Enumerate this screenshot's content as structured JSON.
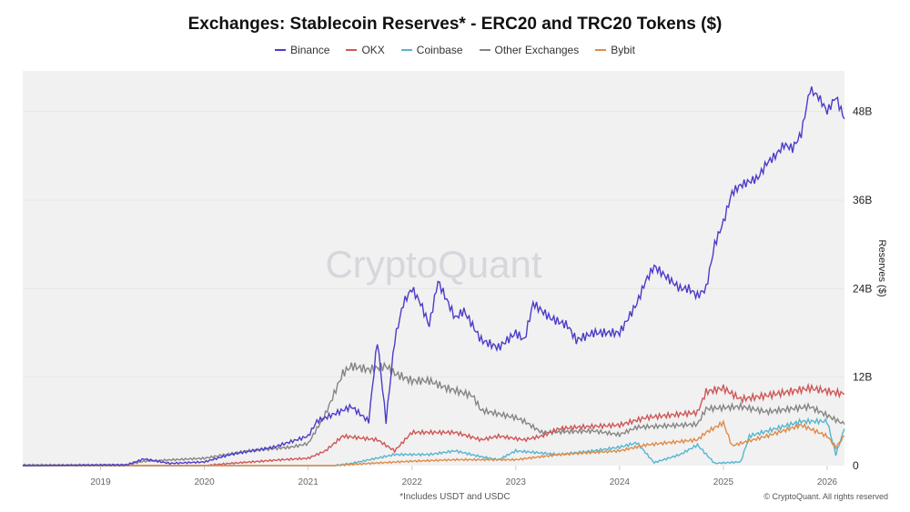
{
  "chart_data": {
    "type": "line",
    "title": "Exchanges: Stablecoin Reserves* - ERC20 and TRC20 Tokens ($)",
    "ylabel": "Reserves ($)",
    "xlabel": "",
    "x_ticks": [
      "2019",
      "2020",
      "2021",
      "2022",
      "2023",
      "2024",
      "2025",
      "2026"
    ],
    "y_ticks": [
      "0",
      "12B",
      "24B",
      "36B",
      "48B"
    ],
    "y_tick_values": [
      0,
      12,
      24,
      36,
      48
    ],
    "y_unit": "billions USD",
    "ylim": [
      0,
      53.5
    ],
    "xlim": [
      "2018-04",
      "2026-03"
    ],
    "y_axis_side": "right",
    "grid": "horizontal",
    "legend_position": "top",
    "watermark": "CryptoQuant",
    "footnote": "*Includes USDT and USDC",
    "copyright": "© CryptoQuant. All rights reserved",
    "series": [
      {
        "name": "Binance",
        "color": "#4b3cc9",
        "points": [
          [
            "2018-04",
            0
          ],
          [
            "2019-04",
            0.1
          ],
          [
            "2019-06",
            0.9
          ],
          [
            "2019-09",
            0.3
          ],
          [
            "2020-01",
            0.5
          ],
          [
            "2020-04",
            1.5
          ],
          [
            "2020-09",
            2.5
          ],
          [
            "2021-01",
            4
          ],
          [
            "2021-02",
            6
          ],
          [
            "2021-04",
            7
          ],
          [
            "2021-06",
            8
          ],
          [
            "2021-08",
            6
          ],
          [
            "2021-09",
            17
          ],
          [
            "2021-10",
            6
          ],
          [
            "2021-11",
            17
          ],
          [
            "2021-12",
            22
          ],
          [
            "2022-01",
            24
          ],
          [
            "2022-02",
            22
          ],
          [
            "2022-03",
            19
          ],
          [
            "2022-04",
            25
          ],
          [
            "2022-06",
            20
          ],
          [
            "2022-07",
            21
          ],
          [
            "2022-08",
            19
          ],
          [
            "2022-09",
            17
          ],
          [
            "2022-11",
            16
          ],
          [
            "2023-01",
            18
          ],
          [
            "2023-02",
            17
          ],
          [
            "2023-03",
            22
          ],
          [
            "2023-05",
            20
          ],
          [
            "2023-07",
            19
          ],
          [
            "2023-08",
            17
          ],
          [
            "2023-10",
            18
          ],
          [
            "2024-01",
            18
          ],
          [
            "2024-02",
            20
          ],
          [
            "2024-03",
            22
          ],
          [
            "2024-04",
            25
          ],
          [
            "2024-05",
            27
          ],
          [
            "2024-07",
            25
          ],
          [
            "2024-08",
            24
          ],
          [
            "2024-09",
            24
          ],
          [
            "2024-10",
            23
          ],
          [
            "2024-11",
            24
          ],
          [
            "2024-12",
            30
          ],
          [
            "2025-01",
            33
          ],
          [
            "2025-02",
            37
          ],
          [
            "2025-03",
            38
          ],
          [
            "2025-05",
            39
          ],
          [
            "2025-06",
            41
          ],
          [
            "2025-07",
            42
          ],
          [
            "2025-08",
            43.5
          ],
          [
            "2025-09",
            43
          ],
          [
            "2025-10",
            45
          ],
          [
            "2025-11",
            51
          ],
          [
            "2025-12",
            50
          ],
          [
            "2026-01",
            48
          ],
          [
            "2026-02",
            50
          ],
          [
            "2026-03",
            47
          ]
        ]
      },
      {
        "name": "OKX",
        "color": "#cf5757",
        "points": [
          [
            "2018-04",
            0
          ],
          [
            "2020-01",
            0
          ],
          [
            "2020-04",
            0.3
          ],
          [
            "2020-10",
            0.8
          ],
          [
            "2021-01",
            1
          ],
          [
            "2021-03",
            2
          ],
          [
            "2021-05",
            4
          ],
          [
            "2021-09",
            3.5
          ],
          [
            "2021-11",
            2
          ],
          [
            "2022-01",
            4.5
          ],
          [
            "2022-06",
            4.5
          ],
          [
            "2022-09",
            3.5
          ],
          [
            "2022-11",
            4
          ],
          [
            "2023-02",
            3.5
          ],
          [
            "2023-04",
            4
          ],
          [
            "2023-06",
            5
          ],
          [
            "2023-08",
            5.2
          ],
          [
            "2024-01",
            5.5
          ],
          [
            "2024-04",
            6.5
          ],
          [
            "2024-10",
            7.2
          ],
          [
            "2024-11",
            10
          ],
          [
            "2025-01",
            10.5
          ],
          [
            "2025-03",
            9
          ],
          [
            "2025-06",
            9.5
          ],
          [
            "2025-11",
            10.5
          ],
          [
            "2026-03",
            9.7
          ]
        ]
      },
      {
        "name": "Coinbase",
        "color": "#56b6cf",
        "points": [
          [
            "2018-04",
            0
          ],
          [
            "2021-04",
            0
          ],
          [
            "2021-06",
            0.3
          ],
          [
            "2021-11",
            1.5
          ],
          [
            "2022-03",
            1.5
          ],
          [
            "2022-06",
            2
          ],
          [
            "2022-09",
            1.2
          ],
          [
            "2022-11",
            0.8
          ],
          [
            "2023-01",
            2
          ],
          [
            "2023-06",
            1.5
          ],
          [
            "2023-10",
            2
          ],
          [
            "2024-01",
            2.5
          ],
          [
            "2024-03",
            3.1
          ],
          [
            "2024-05",
            0.4
          ],
          [
            "2024-08",
            1.5
          ],
          [
            "2024-10",
            2.8
          ],
          [
            "2024-12",
            0.3
          ],
          [
            "2025-03",
            0.5
          ],
          [
            "2025-04",
            4
          ],
          [
            "2025-07",
            5
          ],
          [
            "2025-10",
            6
          ],
          [
            "2026-01",
            6
          ],
          [
            "2026-02",
            1.5
          ],
          [
            "2026-03",
            5
          ]
        ]
      },
      {
        "name": "Other Exchanges",
        "color": "#858585",
        "points": [
          [
            "2018-04",
            0.1
          ],
          [
            "2019-04",
            0.1
          ],
          [
            "2019-06",
            0.6
          ],
          [
            "2020-01",
            1
          ],
          [
            "2020-06",
            2
          ],
          [
            "2020-11",
            2.5
          ],
          [
            "2021-01",
            3
          ],
          [
            "2021-02",
            5
          ],
          [
            "2021-03",
            7
          ],
          [
            "2021-05",
            12.5
          ],
          [
            "2021-06",
            13.5
          ],
          [
            "2021-08",
            13
          ],
          [
            "2021-10",
            13.5
          ],
          [
            "2021-11",
            12.5
          ],
          [
            "2022-01",
            11.5
          ],
          [
            "2022-03",
            11.5
          ],
          [
            "2022-05",
            10.5
          ],
          [
            "2022-08",
            9.5
          ],
          [
            "2022-09",
            7.5
          ],
          [
            "2023-01",
            6.5
          ],
          [
            "2023-02",
            6
          ],
          [
            "2023-04",
            4.5
          ],
          [
            "2023-10",
            4.7
          ],
          [
            "2024-01",
            4.2
          ],
          [
            "2024-03",
            5.2
          ],
          [
            "2024-10",
            5.6
          ],
          [
            "2024-11",
            7.7
          ],
          [
            "2025-03",
            8
          ],
          [
            "2025-06",
            7.3
          ],
          [
            "2025-11",
            8
          ],
          [
            "2026-03",
            5.6
          ]
        ]
      },
      {
        "name": "Bybit",
        "color": "#e08a48",
        "points": [
          [
            "2018-04",
            0
          ],
          [
            "2021-04",
            0
          ],
          [
            "2021-08",
            0.3
          ],
          [
            "2022-01",
            0.6
          ],
          [
            "2022-06",
            0.8
          ],
          [
            "2023-01",
            0.8
          ],
          [
            "2023-06",
            1.5
          ],
          [
            "2024-01",
            2
          ],
          [
            "2024-04",
            2.8
          ],
          [
            "2024-10",
            3.5
          ],
          [
            "2024-11",
            4.5
          ],
          [
            "2025-01",
            5.8
          ],
          [
            "2025-02",
            2.7
          ],
          [
            "2025-06",
            4
          ],
          [
            "2025-10",
            5.5
          ],
          [
            "2026-01",
            4
          ],
          [
            "2026-02",
            2.5
          ],
          [
            "2026-03",
            4
          ]
        ]
      }
    ]
  }
}
